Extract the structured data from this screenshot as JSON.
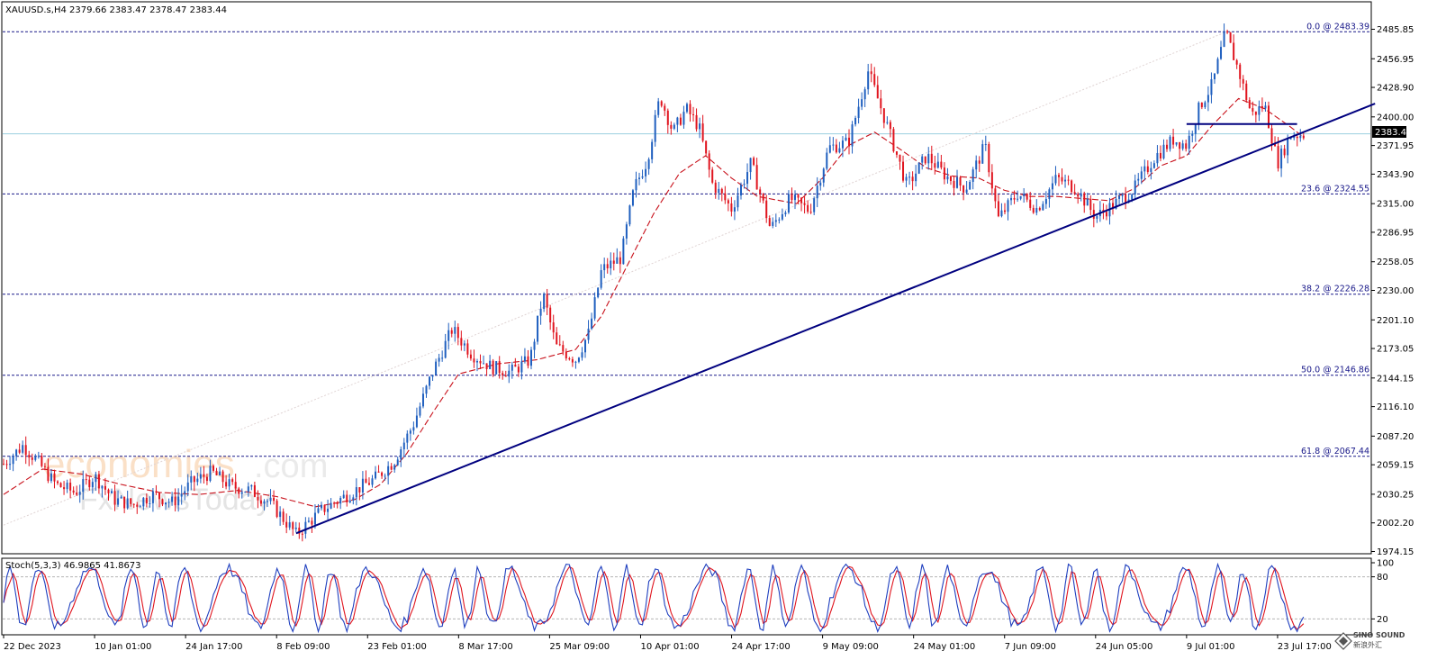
{
  "header": {
    "symbol_info": "XAUUSD.s,H4  2379.66 2383.47 2378.47 2383.44"
  },
  "stoch_header": "Stoch(5,3,3) 46.9865 41.8673",
  "current_price": "2383.44",
  "watermark": {
    "line1": "economies",
    "line1_suffix": ".com",
    "line2": "FxNewsToday"
  },
  "corner_logo": {
    "line1": "SINO SOUND",
    "line2": "新浪外汇"
  },
  "colors": {
    "up": "#1f5fbf",
    "down": "#e0141e",
    "ma": "#c8101a",
    "trendline": "#00007f",
    "level": "#1a1a8a",
    "price_line": "#9ccfe0",
    "stoch_main": "#1f3fbf",
    "stoch_signal": "#e0141e"
  },
  "chart_data": {
    "type": "candlestick",
    "symbol": "XAUUSD.s",
    "timeframe": "H4",
    "ylim": [
      1974.15,
      2499.0
    ],
    "y_ticks": [
      "2485.85",
      "2456.95",
      "2428.90",
      "2400.00",
      "2371.95",
      "2343.90",
      "2315.00",
      "2286.95",
      "2258.05",
      "2230.00",
      "2201.10",
      "2173.05",
      "2144.15",
      "2116.10",
      "2087.20",
      "2059.15",
      "2030.25",
      "2002.20",
      "1974.15"
    ],
    "x_ticks": [
      "22 Dec 2023",
      "10 Jan 01:00",
      "24 Jan 17:00",
      "8 Feb 09:00",
      "23 Feb 01:00",
      "8 Mar 17:00",
      "25 Mar 09:00",
      "10 Apr 01:00",
      "24 Apr 17:00",
      "9 May 09:00",
      "24 May 01:00",
      "7 Jun 09:00",
      "24 Jun 05:00",
      "9 Jul 01:00",
      "23 Jul 17:00"
    ],
    "x_tick_positions": [
      0,
      14,
      28,
      42,
      56,
      70,
      84,
      98,
      112,
      126,
      140,
      154,
      168,
      182,
      196
    ],
    "x_total": 210,
    "price_path": [
      [
        0,
        2060
      ],
      [
        3,
        2078
      ],
      [
        5,
        2064
      ],
      [
        8,
        2040
      ],
      [
        11,
        2032
      ],
      [
        14,
        2048
      ],
      [
        17,
        2025
      ],
      [
        20,
        2020
      ],
      [
        23,
        2030
      ],
      [
        26,
        2022
      ],
      [
        29,
        2042
      ],
      [
        32,
        2052
      ],
      [
        35,
        2038
      ],
      [
        38,
        2034
      ],
      [
        41,
        2022
      ],
      [
        45,
        1991
      ],
      [
        49,
        2015
      ],
      [
        53,
        2030
      ],
      [
        57,
        2045
      ],
      [
        60,
        2062
      ],
      [
        63,
        2098
      ],
      [
        66,
        2150
      ],
      [
        69,
        2192
      ],
      [
        72,
        2168
      ],
      [
        75,
        2155
      ],
      [
        78,
        2150
      ],
      [
        81,
        2162
      ],
      [
        83,
        2226
      ],
      [
        85,
        2175
      ],
      [
        88,
        2162
      ],
      [
        90,
        2188
      ],
      [
        92,
        2250
      ],
      [
        95,
        2262
      ],
      [
        97,
        2330
      ],
      [
        99,
        2357
      ],
      [
        101,
        2420
      ],
      [
        103,
        2385
      ],
      [
        105,
        2408
      ],
      [
        107,
        2390
      ],
      [
        109,
        2335
      ],
      [
        112,
        2310
      ],
      [
        115,
        2355
      ],
      [
        118,
        2290
      ],
      [
        121,
        2320
      ],
      [
        124,
        2308
      ],
      [
        127,
        2370
      ],
      [
        130,
        2375
      ],
      [
        133,
        2445
      ],
      [
        136,
        2390
      ],
      [
        139,
        2332
      ],
      [
        142,
        2362
      ],
      [
        145,
        2342
      ],
      [
        148,
        2330
      ],
      [
        151,
        2372
      ],
      [
        153,
        2300
      ],
      [
        156,
        2325
      ],
      [
        159,
        2310
      ],
      [
        162,
        2340
      ],
      [
        165,
        2330
      ],
      [
        168,
        2302
      ],
      [
        171,
        2315
      ],
      [
        174,
        2330
      ],
      [
        177,
        2360
      ],
      [
        180,
        2378
      ],
      [
        182,
        2372
      ],
      [
        184,
        2410
      ],
      [
        186,
        2432
      ],
      [
        188,
        2483
      ],
      [
        190,
        2445
      ],
      [
        192,
        2402
      ],
      [
        194,
        2412
      ],
      [
        196,
        2355
      ],
      [
        198,
        2382
      ],
      [
        200,
        2383
      ]
    ],
    "ma_path": [
      [
        0,
        2030
      ],
      [
        6,
        2055
      ],
      [
        12,
        2050
      ],
      [
        18,
        2040
      ],
      [
        24,
        2032
      ],
      [
        30,
        2030
      ],
      [
        36,
        2034
      ],
      [
        42,
        2028
      ],
      [
        48,
        2018
      ],
      [
        54,
        2025
      ],
      [
        58,
        2040
      ],
      [
        62,
        2070
      ],
      [
        66,
        2110
      ],
      [
        70,
        2148
      ],
      [
        76,
        2158
      ],
      [
        82,
        2162
      ],
      [
        88,
        2172
      ],
      [
        92,
        2205
      ],
      [
        96,
        2255
      ],
      [
        100,
        2305
      ],
      [
        104,
        2345
      ],
      [
        108,
        2362
      ],
      [
        112,
        2340
      ],
      [
        116,
        2322
      ],
      [
        122,
        2315
      ],
      [
        126,
        2340
      ],
      [
        130,
        2372
      ],
      [
        134,
        2385
      ],
      [
        138,
        2368
      ],
      [
        142,
        2350
      ],
      [
        146,
        2342
      ],
      [
        150,
        2340
      ],
      [
        154,
        2328
      ],
      [
        158,
        2322
      ],
      [
        162,
        2322
      ],
      [
        166,
        2320
      ],
      [
        170,
        2318
      ],
      [
        174,
        2330
      ],
      [
        178,
        2352
      ],
      [
        182,
        2362
      ],
      [
        186,
        2392
      ],
      [
        190,
        2418
      ],
      [
        194,
        2408
      ],
      [
        198,
        2390
      ],
      [
        200,
        2380
      ]
    ],
    "fib_levels": [
      {
        "label": "0.0 @ 2483.39",
        "value": 2483.39
      },
      {
        "label": "23.6 @ 2324.55",
        "value": 2324.55
      },
      {
        "label": "38.2 @ 2226.28",
        "value": 2226.28
      },
      {
        "label": "50.0 @ 2146.86",
        "value": 2146.86
      },
      {
        "label": "61.8 @ 2067.44",
        "value": 2067.44
      }
    ],
    "current_price": 2383.44,
    "trendline": {
      "from": [
        45,
        1992
      ],
      "to": [
        211,
        2413
      ]
    },
    "resistance_segment": {
      "from": [
        182,
        2393
      ],
      "to": [
        199,
        2393
      ],
      "value": 2393
    },
    "stochastic": {
      "params": "5,3,3",
      "main": 46.9865,
      "signal": 41.8673,
      "levels": [
        80,
        20
      ],
      "ylim": [
        0,
        100
      ],
      "y_ticks": [
        "100",
        "80",
        "20"
      ]
    }
  }
}
